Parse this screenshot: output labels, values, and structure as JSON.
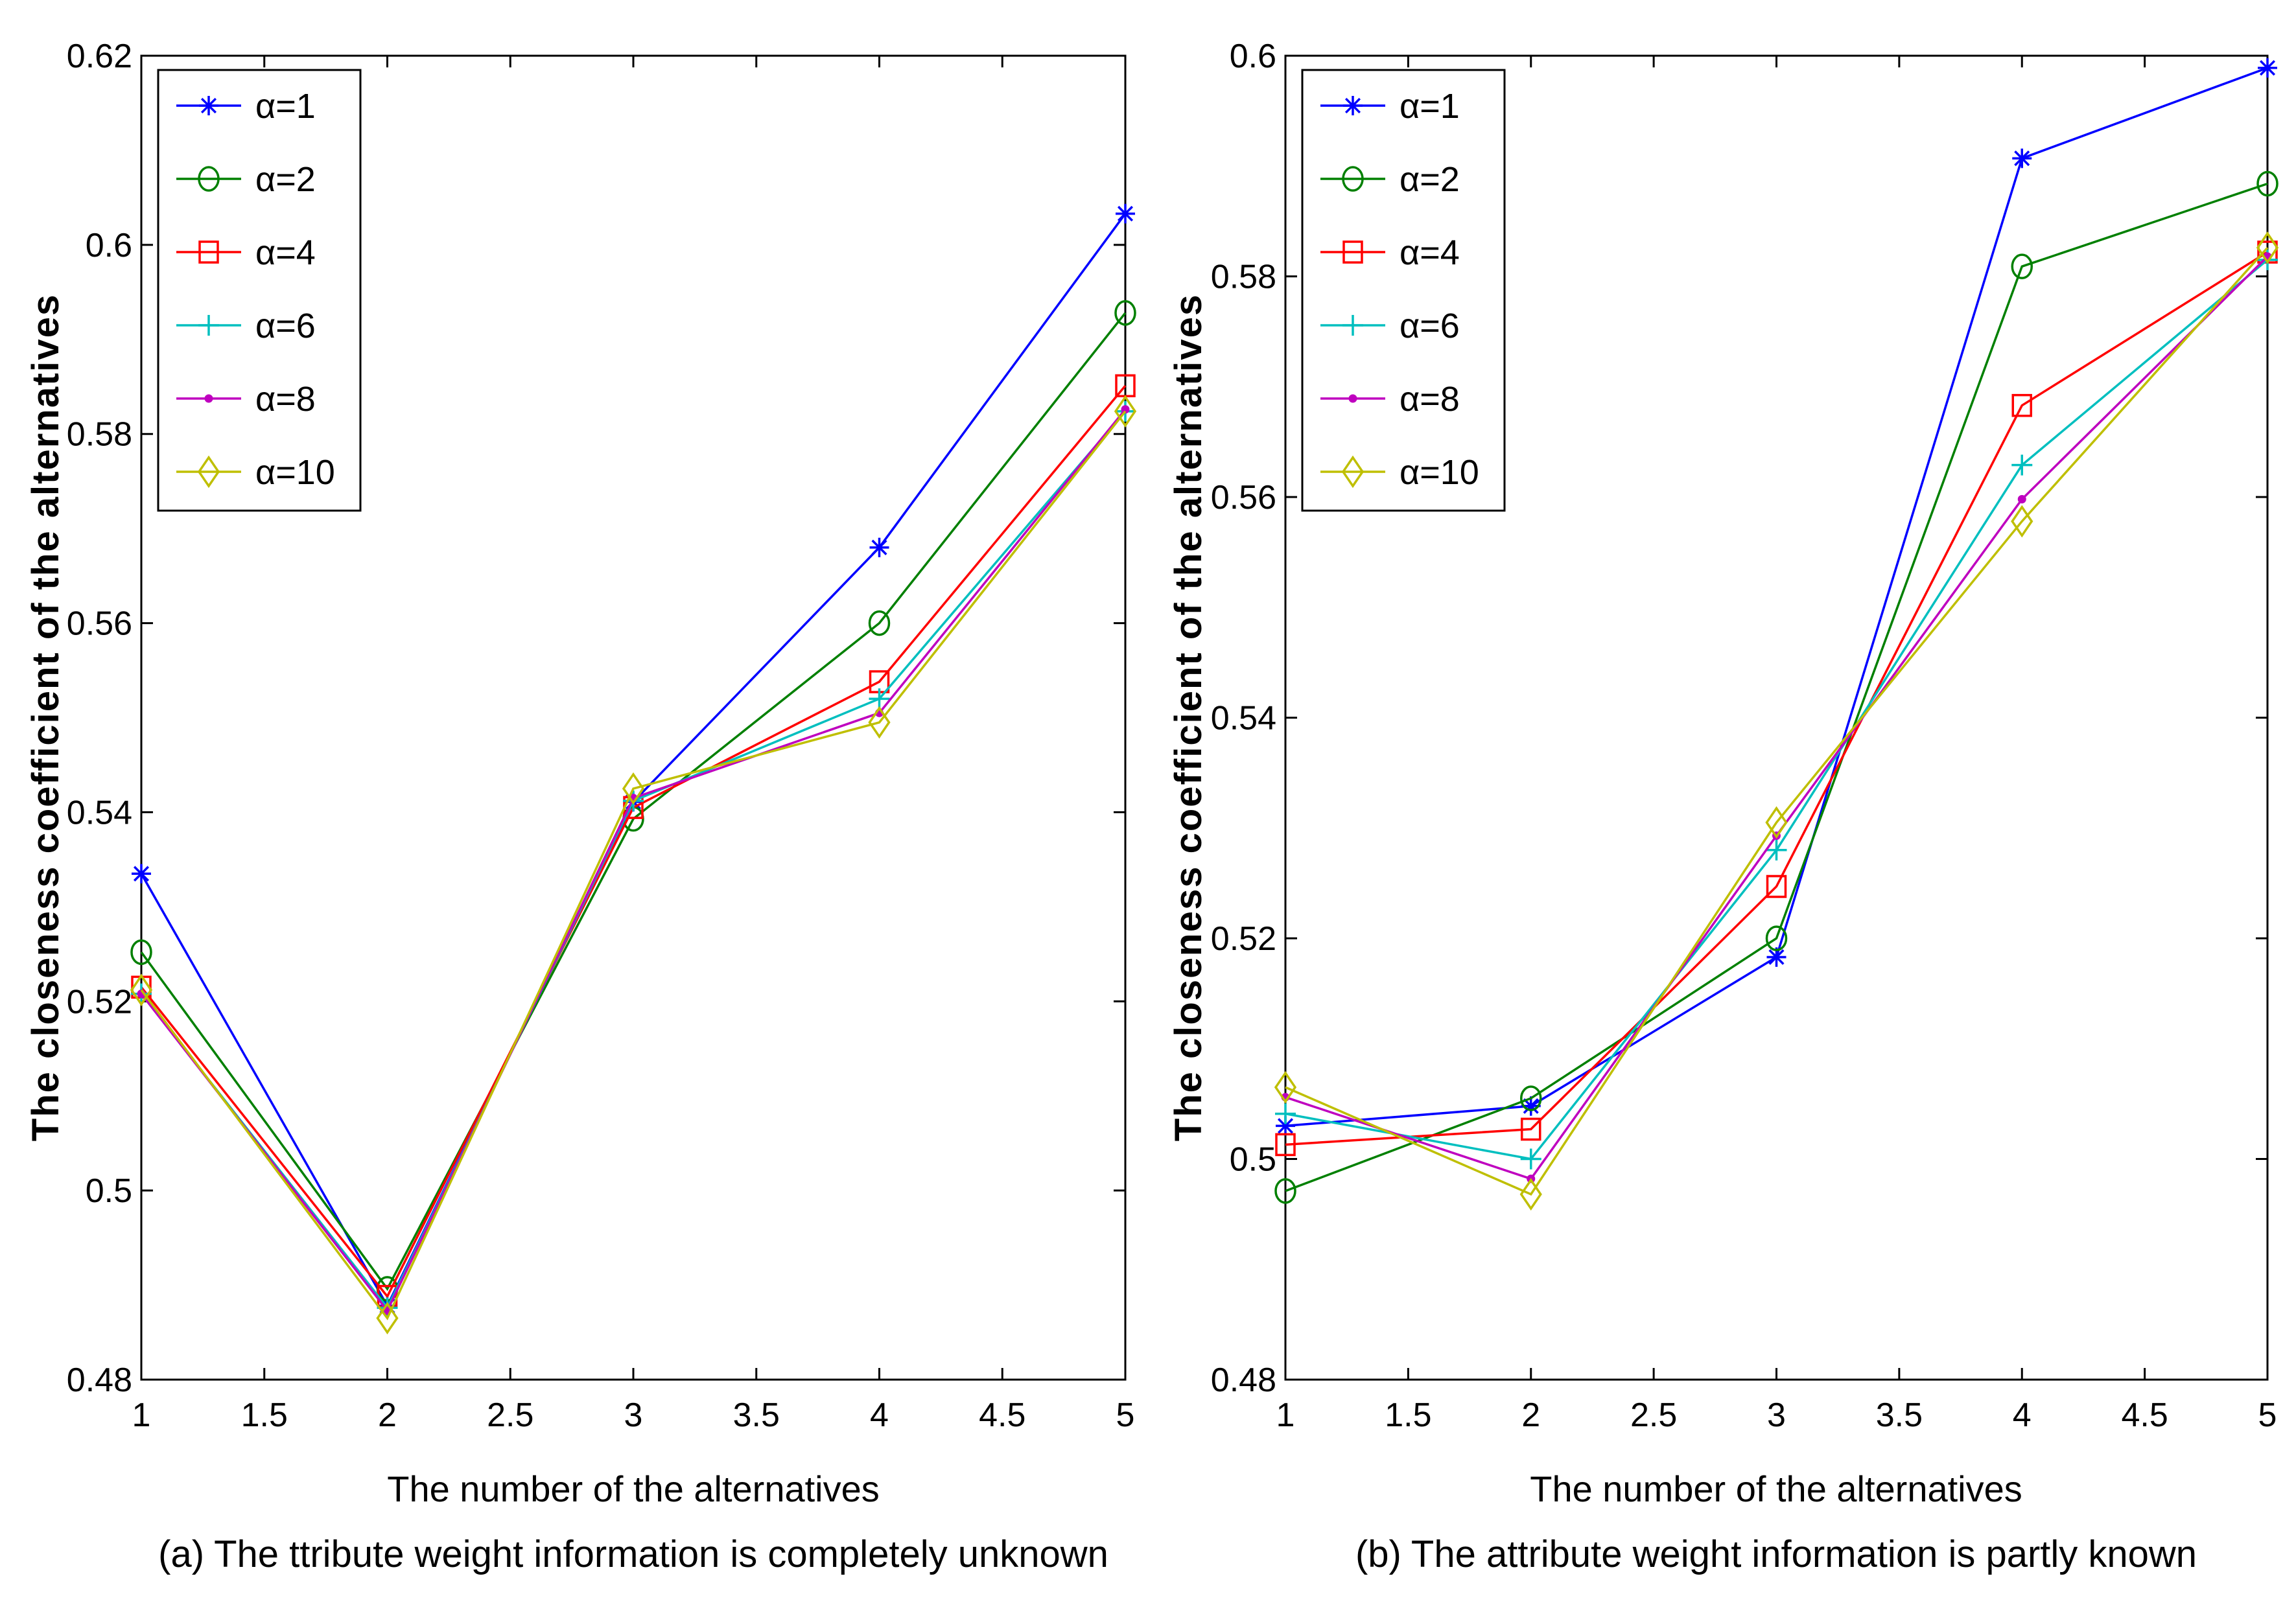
{
  "chart_data": [
    {
      "type": "line",
      "title": "",
      "xlabel": "The number of the alternatives",
      "ylabel": "The closeness coefficient of the alternatives",
      "caption": "(a) The ttribute weight information is completely unknown",
      "xlim": [
        1,
        5
      ],
      "ylim": [
        0.48,
        0.62
      ],
      "xticks": [
        1,
        1.5,
        2,
        2.5,
        3,
        3.5,
        4,
        4.5,
        5
      ],
      "xtick_labels": [
        "1",
        "1.5",
        "2",
        "2.5",
        "3",
        "3.5",
        "4",
        "4.5",
        "5"
      ],
      "yticks": [
        0.48,
        0.5,
        0.52,
        0.54,
        0.56,
        0.58,
        0.6,
        0.62
      ],
      "ytick_labels": [
        "0.48",
        "0.5",
        "0.52",
        "0.54",
        "0.56",
        "0.58",
        "0.6",
        "0.62"
      ],
      "grid": false,
      "legend_position": "top-left",
      "x": [
        1,
        2,
        3,
        4,
        5
      ],
      "series": [
        {
          "name": "α=1",
          "color": "#0000ff",
          "marker": "asterisk",
          "values": [
            0.5335,
            0.4878,
            0.5411,
            0.568,
            0.6033
          ]
        },
        {
          "name": "α=2",
          "color": "#008000",
          "marker": "circle",
          "values": [
            0.5252,
            0.4896,
            0.5393,
            0.56,
            0.5928
          ]
        },
        {
          "name": "α=4",
          "color": "#ff0000",
          "marker": "square",
          "values": [
            0.5215,
            0.4888,
            0.5405,
            0.5538,
            0.5851
          ]
        },
        {
          "name": "α=6",
          "color": "#00bfbf",
          "marker": "plus",
          "values": [
            0.5208,
            0.4876,
            0.5412,
            0.552,
            0.5824
          ]
        },
        {
          "name": "α=8",
          "color": "#bf00bf",
          "marker": "dot",
          "values": [
            0.5208,
            0.4873,
            0.5415,
            0.5505,
            0.5826
          ]
        },
        {
          "name": "α=10",
          "color": "#bfbf00",
          "marker": "diamond",
          "values": [
            0.5212,
            0.4865,
            0.5425,
            0.5495,
            0.5824
          ]
        }
      ]
    },
    {
      "type": "line",
      "title": "",
      "xlabel": "The number of the alternatives",
      "ylabel": "The closeness coefficient of the alternatives",
      "caption": "(b) The attribute weight information is partly known",
      "xlim": [
        1,
        5
      ],
      "ylim": [
        0.48,
        0.6
      ],
      "xticks": [
        1,
        1.5,
        2,
        2.5,
        3,
        3.5,
        4,
        4.5,
        5
      ],
      "xtick_labels": [
        "1",
        "1.5",
        "2",
        "2.5",
        "3",
        "3.5",
        "4",
        "4.5",
        "5"
      ],
      "yticks": [
        0.48,
        0.5,
        0.52,
        0.54,
        0.56,
        0.58,
        0.6
      ],
      "ytick_labels": [
        "0.48",
        "0.5",
        "0.52",
        "0.54",
        "0.56",
        "0.58",
        "0.6"
      ],
      "grid": false,
      "legend_position": "top-left",
      "x": [
        1,
        2,
        3,
        4,
        5
      ],
      "series": [
        {
          "name": "α=1",
          "color": "#0000ff",
          "marker": "asterisk",
          "values": [
            0.503,
            0.5048,
            0.5183,
            0.5907,
            0.5989
          ]
        },
        {
          "name": "α=2",
          "color": "#008000",
          "marker": "circle",
          "values": [
            0.4971,
            0.5055,
            0.52,
            0.5809,
            0.5884
          ]
        },
        {
          "name": "α=4",
          "color": "#ff0000",
          "marker": "square",
          "values": [
            0.5013,
            0.5027,
            0.5247,
            0.5683,
            0.5822
          ]
        },
        {
          "name": "α=6",
          "color": "#00bfbf",
          "marker": "plus",
          "values": [
            0.5041,
            0.5,
            0.528,
            0.5629,
            0.5815
          ]
        },
        {
          "name": "α=8",
          "color": "#bf00bf",
          "marker": "dot",
          "values": [
            0.5056,
            0.4982,
            0.5293,
            0.5598,
            0.5818
          ]
        },
        {
          "name": "α=10",
          "color": "#bfbf00",
          "marker": "diamond",
          "values": [
            0.5065,
            0.4968,
            0.5305,
            0.5578,
            0.5826
          ]
        }
      ]
    }
  ]
}
